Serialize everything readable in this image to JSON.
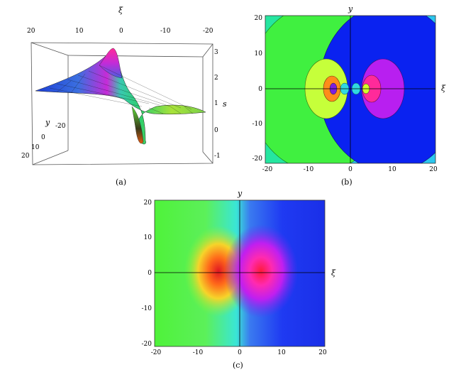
{
  "panels": {
    "a": {
      "caption": "(a)",
      "top_axis_label": "ξ",
      "top_ticks": [
        "20",
        "10",
        "0",
        "-10",
        "-20"
      ],
      "z_axis_label": "s",
      "z_ticks": [
        "3",
        "2",
        "1",
        "0",
        "-1"
      ],
      "y_axis_label": "y",
      "y_ticks": [
        "20",
        "10",
        "0",
        "-20"
      ]
    },
    "b": {
      "caption": "(b)",
      "x_axis_label": "ξ",
      "y_axis_label": "y",
      "x_ticks": [
        "-20",
        "-10",
        "0",
        "10",
        "20"
      ],
      "y_ticks": [
        "20",
        "10",
        "0",
        "-10",
        "-20"
      ]
    },
    "c": {
      "caption": "(c)",
      "x_axis_label": "ξ",
      "y_axis_label": "y",
      "x_ticks": [
        "-20",
        "-10",
        "0",
        "10",
        "20"
      ],
      "y_ticks": [
        "20",
        "10",
        "0",
        "-10",
        "-20"
      ]
    }
  },
  "colors": {
    "green": "#39ef39",
    "yellow_green": "#c8ff2a",
    "orange": "#ff8c1a",
    "purple": "#7a1fe0",
    "cyan": "#20c9e8",
    "blue": "#0a1bf0",
    "magenta": "#c21bf0",
    "pink": "#ff2a9a",
    "red": "#e0162a"
  }
}
